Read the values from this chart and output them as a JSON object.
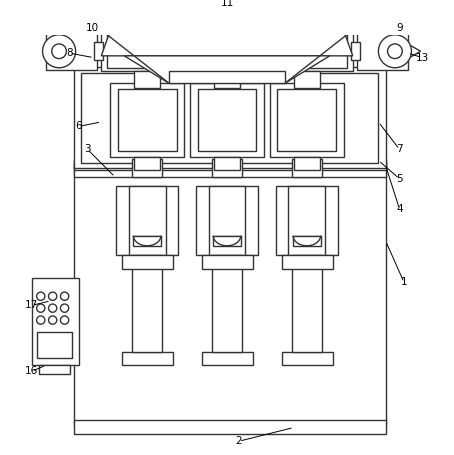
{
  "bg_color": "#ffffff",
  "lc": "#333333",
  "lw": 1.0,
  "fig_w": 4.54,
  "fig_h": 4.55
}
